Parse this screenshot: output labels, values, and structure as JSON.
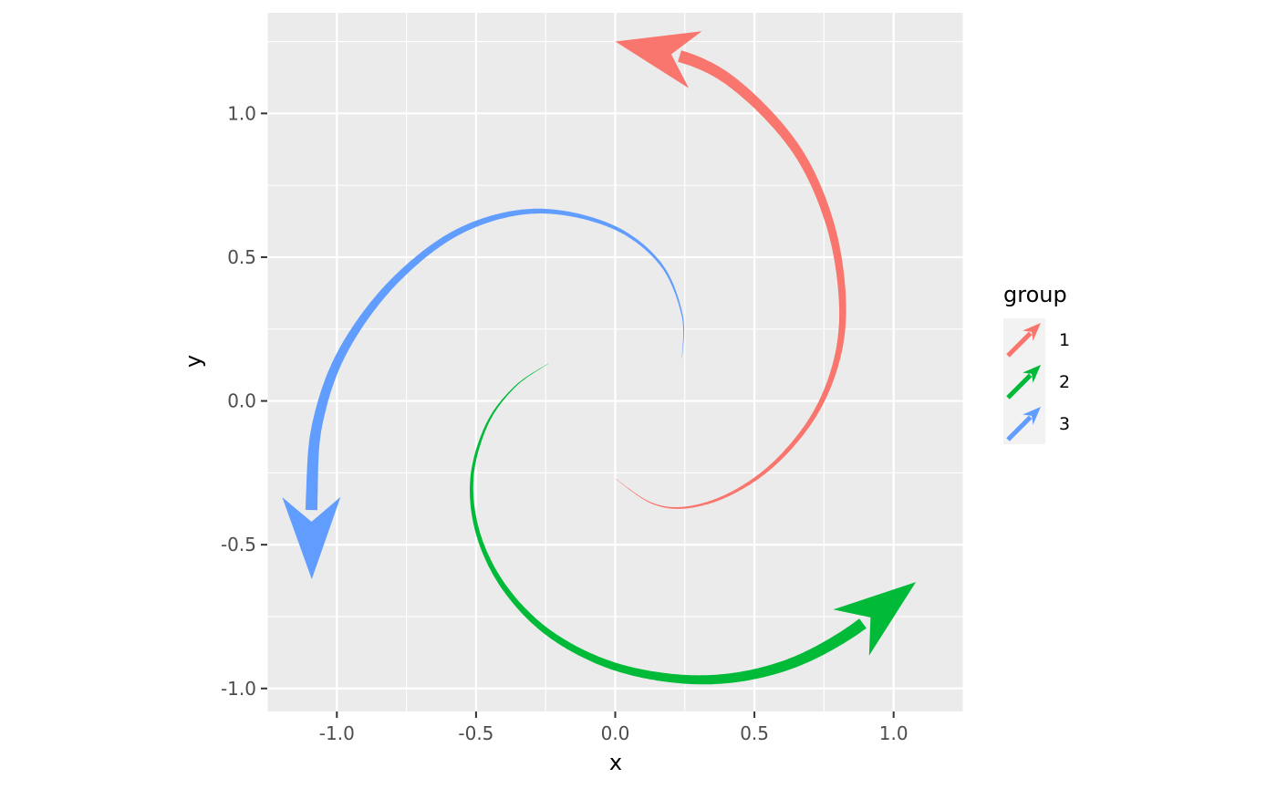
{
  "chart_data": {
    "type": "line",
    "style": "tapered spiral arrows (ggforce geom_arc-like)",
    "xlabel": "x",
    "ylabel": "y",
    "xlim": [
      -1.25,
      1.25
    ],
    "ylim": [
      -1.08,
      1.35
    ],
    "x_ticks": [
      -1.0,
      -0.5,
      0.0,
      0.5,
      1.0
    ],
    "x_tick_labels": [
      "-1.0",
      "-0.5",
      "0.0",
      "0.5",
      "1.0"
    ],
    "y_ticks": [
      -1.0,
      -0.5,
      0.0,
      0.5,
      1.0
    ],
    "y_tick_labels": [
      "-1.0",
      "-0.5",
      "0.0",
      "0.5",
      "1.0"
    ],
    "grid": true,
    "panel_background": "#ebebeb",
    "grid_color": "#ffffff",
    "legend": {
      "title": "group",
      "position": "right"
    },
    "series": [
      {
        "name": "1",
        "color": "#F8766D",
        "points": [
          [
            0.0,
            -0.27
          ],
          [
            0.13,
            -0.355
          ],
          [
            0.26,
            -0.37
          ],
          [
            0.42,
            -0.32
          ],
          [
            0.58,
            -0.21
          ],
          [
            0.72,
            -0.04
          ],
          [
            0.8,
            0.16
          ],
          [
            0.815,
            0.37
          ],
          [
            0.77,
            0.62
          ],
          [
            0.66,
            0.86
          ],
          [
            0.48,
            1.06
          ],
          [
            0.29,
            1.18
          ],
          [
            0.0,
            1.25
          ]
        ]
      },
      {
        "name": "2",
        "color": "#00BA38",
        "points": [
          [
            -0.24,
            0.13
          ],
          [
            -0.36,
            0.05
          ],
          [
            -0.46,
            -0.08
          ],
          [
            -0.515,
            -0.27
          ],
          [
            -0.49,
            -0.47
          ],
          [
            -0.39,
            -0.66
          ],
          [
            -0.22,
            -0.82
          ],
          [
            0.02,
            -0.93
          ],
          [
            0.31,
            -0.97
          ],
          [
            0.58,
            -0.93
          ],
          [
            0.82,
            -0.82
          ],
          [
            1.08,
            -0.63
          ]
        ]
      },
      {
        "name": "3",
        "color": "#619CFF",
        "points": [
          [
            0.24,
            0.15
          ],
          [
            0.24,
            0.3
          ],
          [
            0.16,
            0.48
          ],
          [
            -0.02,
            0.61
          ],
          [
            -0.29,
            0.66
          ],
          [
            -0.56,
            0.59
          ],
          [
            -0.8,
            0.41
          ],
          [
            -0.98,
            0.17
          ],
          [
            -1.07,
            -0.08
          ],
          [
            -1.09,
            -0.33
          ],
          [
            -1.09,
            -0.62
          ]
        ]
      }
    ]
  }
}
